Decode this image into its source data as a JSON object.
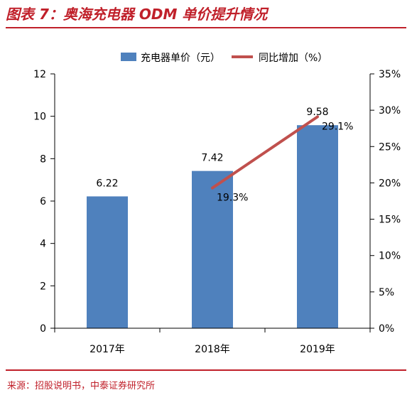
{
  "header": {
    "title": "图表 7：奥海充电器 ODM 单价提升情况"
  },
  "footer": {
    "source": "来源：招股说明书，中泰证券研究所"
  },
  "colors": {
    "bar": "#4f81bd",
    "line": "#c0504d",
    "accent": "#c0202a",
    "axis": "#000000"
  },
  "chart_data": {
    "type": "bar",
    "categories": [
      "2017年",
      "2018年",
      "2019年"
    ],
    "series": [
      {
        "name": "充电器单价（元）",
        "type": "bar",
        "axis": "left",
        "values": [
          6.22,
          7.42,
          9.58
        ],
        "labels": [
          "6.22",
          "7.42",
          "9.58"
        ]
      },
      {
        "name": "同比增加（%）",
        "type": "line",
        "axis": "right",
        "points": [
          {
            "category": "2018年",
            "value": 19.3,
            "label": "19.3%"
          },
          {
            "category": "2019年",
            "value": 29.1,
            "label": "29.1%"
          }
        ]
      }
    ],
    "y_left": {
      "min": 0,
      "max": 12,
      "ticks": [
        0,
        2,
        4,
        6,
        8,
        10,
        12
      ],
      "tick_labels": [
        "0",
        "2",
        "4",
        "6",
        "8",
        "10",
        "12"
      ]
    },
    "y_right": {
      "min": 0,
      "max": 35,
      "ticks": [
        0,
        5,
        10,
        15,
        20,
        25,
        30,
        35
      ],
      "tick_labels": [
        "0%",
        "5%",
        "10%",
        "15%",
        "20%",
        "25%",
        "30%",
        "35%"
      ]
    },
    "legend_position": "top",
    "grid": false
  }
}
